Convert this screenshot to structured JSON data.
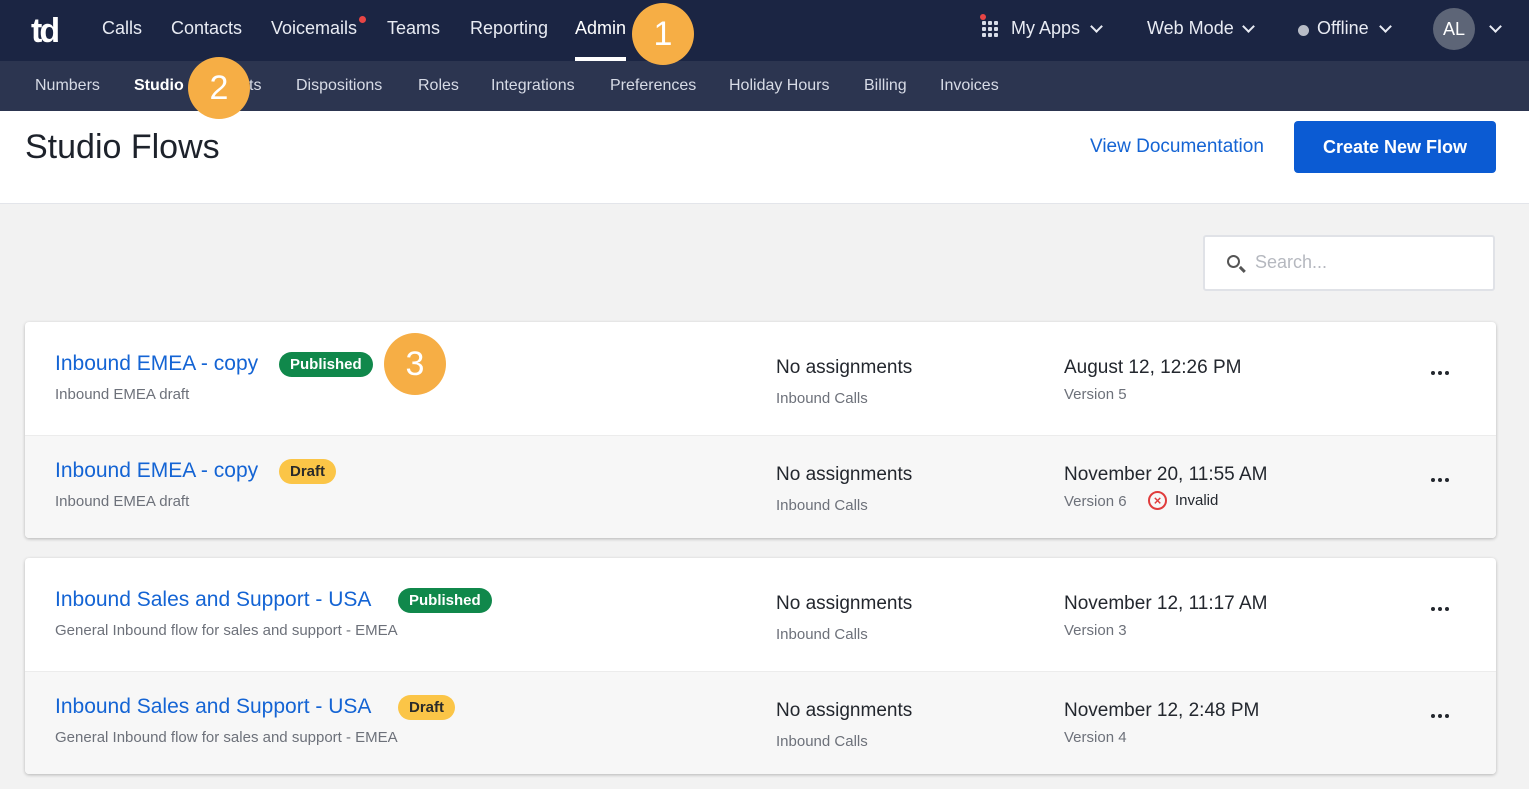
{
  "topnav": {
    "logo": "td",
    "items": [
      "Calls",
      "Contacts",
      "Voicemails",
      "Teams",
      "Reporting",
      "Admin"
    ],
    "active": "Admin",
    "my_apps": "My Apps",
    "mode": "Web Mode",
    "status": "Offline",
    "avatar": "AL"
  },
  "subnav": {
    "items": [
      "Numbers",
      "Studio",
      "ts",
      "Dispositions",
      "Roles",
      "Integrations",
      "Preferences",
      "Holiday Hours",
      "Billing",
      "Invoices"
    ],
    "active": "Studio"
  },
  "header": {
    "title": "Studio Flows",
    "doc_link": "View Documentation",
    "create_button": "Create New Flow"
  },
  "search": {
    "placeholder": "Search..."
  },
  "flow_groups": [
    {
      "rows": [
        {
          "name": "Inbound EMEA - copy",
          "status": "Published",
          "description": "Inbound EMEA draft",
          "assignments": "No assignments",
          "assignment_type": "Inbound Calls",
          "date": "August 12, 12:26 PM",
          "version": "Version 5"
        },
        {
          "name": "Inbound EMEA - copy",
          "status": "Draft",
          "description": "Inbound EMEA draft",
          "assignments": "No assignments",
          "assignment_type": "Inbound Calls",
          "date": "November 20, 11:55 AM",
          "version": "Version 6",
          "validation": "Invalid"
        }
      ]
    },
    {
      "rows": [
        {
          "name": "Inbound Sales and Support - USA",
          "status": "Published",
          "description": "General Inbound flow for sales and support - EMEA",
          "assignments": "No assignments",
          "assignment_type": "Inbound Calls",
          "date": "November 12, 11:17 AM",
          "version": "Version 3"
        },
        {
          "name": "Inbound Sales and Support - USA",
          "status": "Draft",
          "description": "General Inbound flow for sales and support - EMEA",
          "assignments": "No assignments",
          "assignment_type": "Inbound Calls",
          "date": "November 12, 2:48 PM",
          "version": "Version 4"
        }
      ]
    }
  ],
  "step_markers": [
    "1",
    "2",
    "3"
  ],
  "colors": {
    "nav_bg": "#1b2543",
    "subnav_bg": "#2c3550",
    "link": "#1464d4",
    "primary_button": "#0b5bd3",
    "published": "#10884b",
    "draft": "#fbc547",
    "marker": "#f6ae45",
    "invalid": "#e03c3c"
  }
}
